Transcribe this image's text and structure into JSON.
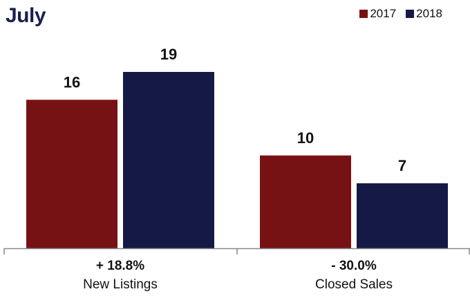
{
  "chart_data": {
    "type": "bar",
    "title": "July",
    "categories": [
      "New Listings",
      "Closed Sales"
    ],
    "category_changes": [
      "+ 18.8%",
      "- 30.0%"
    ],
    "series": [
      {
        "name": "2017",
        "color": "#771214",
        "values": [
          16,
          10
        ]
      },
      {
        "name": "2018",
        "color": "#141a45",
        "values": [
          19,
          7
        ]
      }
    ],
    "ylim": [
      0,
      19
    ],
    "legend_position": "top-right",
    "grid": false
  }
}
